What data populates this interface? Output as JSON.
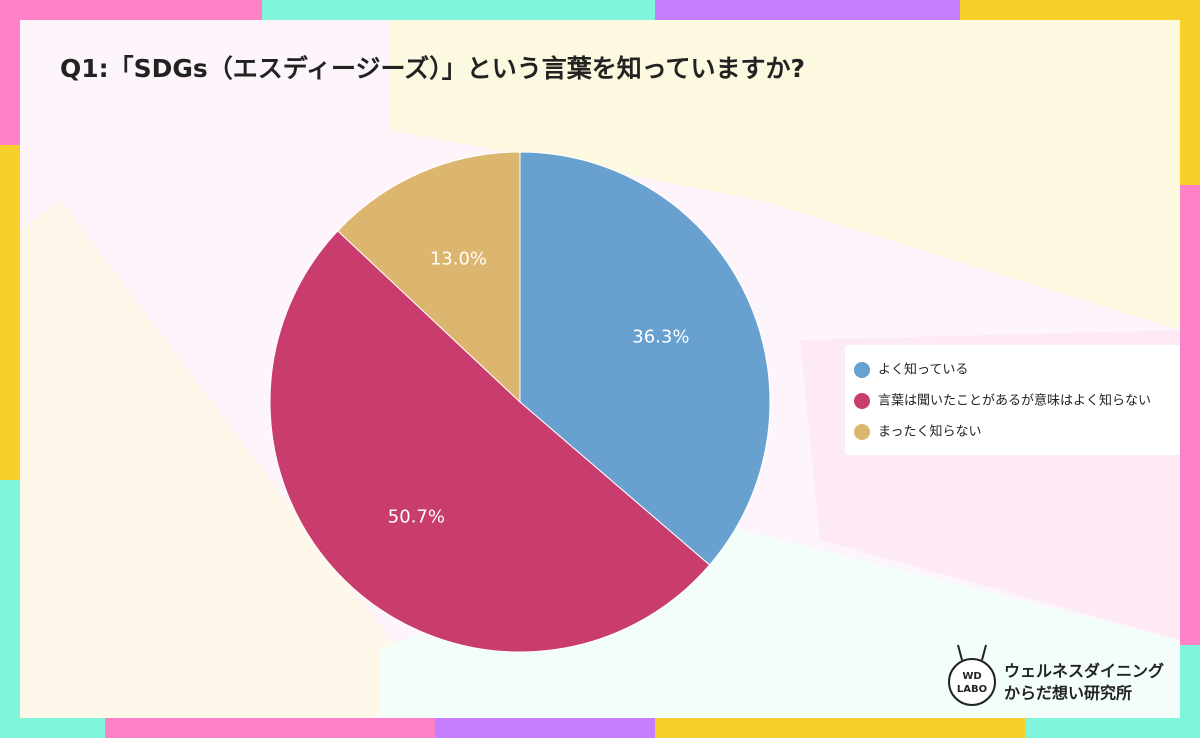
{
  "chart_data": {
    "type": "pie",
    "title": "Q1:「SDGs（エスディージーズ）」という言葉を知っていますか?",
    "categories": [
      "よく知っている",
      "言葉は聞いたことがあるが意味はよく知らない",
      "まったく知らない"
    ],
    "values": [
      36.3,
      50.7,
      13.0
    ],
    "value_labels": [
      "36.3%",
      "50.7%",
      "13.0%"
    ],
    "colors": [
      "#68a0d0",
      "#c93c6e",
      "#dcb56f"
    ],
    "legend": "right"
  },
  "brand": {
    "logo": [
      "WD",
      "LABO"
    ],
    "name": [
      "ウェルネスダイニング",
      "からだ想い研究所"
    ]
  }
}
